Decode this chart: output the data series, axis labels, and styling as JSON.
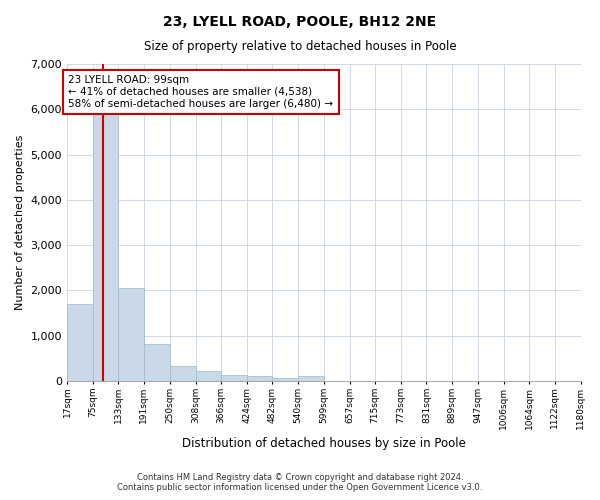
{
  "title": "23, LYELL ROAD, POOLE, BH12 2NE",
  "subtitle": "Size of property relative to detached houses in Poole",
  "xlabel": "Distribution of detached houses by size in Poole",
  "ylabel": "Number of detached properties",
  "footer_line1": "Contains HM Land Registry data © Crown copyright and database right 2024.",
  "footer_line2": "Contains public sector information licensed under the Open Government Licence v3.0.",
  "annotation_line1": "23 LYELL ROAD: 99sqm",
  "annotation_line2": "← 41% of detached houses are smaller (4,538)",
  "annotation_line3": "58% of semi-detached houses are larger (6,480) →",
  "property_size": 99,
  "bin_edges": [
    17,
    75,
    133,
    191,
    250,
    308,
    366,
    424,
    482,
    540,
    599,
    657,
    715,
    773,
    831,
    889,
    947,
    1006,
    1064,
    1122,
    1180
  ],
  "bar_heights": [
    1700,
    6000,
    2050,
    820,
    330,
    210,
    140,
    100,
    65,
    110,
    0,
    0,
    0,
    0,
    0,
    0,
    0,
    0,
    0,
    0
  ],
  "bar_color": "#c9d9e8",
  "bar_edge_color": "#a0b8cc",
  "red_line_color": "#cc0000",
  "annotation_box_color": "#cc0000",
  "background_color": "#ffffff",
  "grid_color": "#c8d4e0",
  "ylim": [
    0,
    7000
  ],
  "yticks": [
    0,
    1000,
    2000,
    3000,
    4000,
    5000,
    6000,
    7000
  ]
}
